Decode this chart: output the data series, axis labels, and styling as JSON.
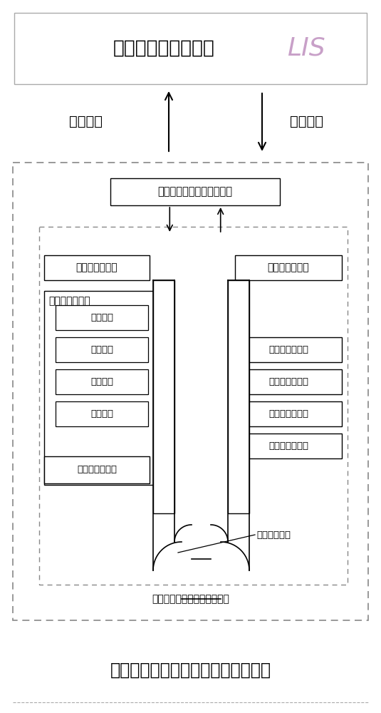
{
  "bg_color": "#ffffff",
  "title_bottom": "医院实验室生化免疫流水线检测系统",
  "label_left": "检测数据",
  "label_right": "下达指令",
  "track_label": "轨道传输模块",
  "auto_label": "实验室自动化流水线检测系统",
  "mgmt_text": "实验室流水线数据管理系统",
  "lis_text1": "实验室信息管理系统",
  "lis_text2": "LIS",
  "inlet_text": "进样和出样模块",
  "pre_text": "预分析处理模块",
  "post_text": "后分析处理模块",
  "sub_boxes_left": [
    "离心模块",
    "去盖模块",
    "去膜模块",
    "分杯模块"
  ],
  "analyzer_left_text": "流水线分析仪器",
  "analyzers_right": [
    "流水线分析仪器",
    "流水线分析仪器",
    "流水线分析仪器",
    "流水线分析仪器"
  ]
}
